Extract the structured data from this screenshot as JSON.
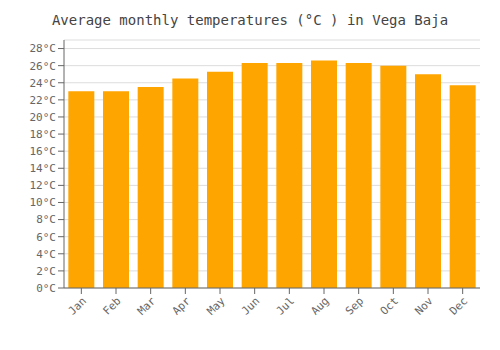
{
  "chart_data": {
    "type": "bar",
    "title": "Average monthly temperatures (°C ) in Vega Baja",
    "categories": [
      "Jan",
      "Feb",
      "Mar",
      "Apr",
      "May",
      "Jun",
      "Jul",
      "Aug",
      "Sep",
      "Oct",
      "Nov",
      "Dec"
    ],
    "values": [
      23.0,
      23.0,
      23.5,
      24.5,
      25.3,
      26.3,
      26.3,
      26.6,
      26.3,
      26.0,
      25.0,
      23.7
    ],
    "color": "#FFA500",
    "ylim": [
      0,
      29
    ],
    "yticks": [
      {
        "value": 0,
        "label": "0°C"
      },
      {
        "value": 2,
        "label": "2°C"
      },
      {
        "value": 4,
        "label": "4°C"
      },
      {
        "value": 6,
        "label": "6°C"
      },
      {
        "value": 8,
        "label": "8°C"
      },
      {
        "value": 10,
        "label": "10°C"
      },
      {
        "value": 12,
        "label": "12°C"
      },
      {
        "value": 14,
        "label": "14°C"
      },
      {
        "value": 16,
        "label": "16°C"
      },
      {
        "value": 18,
        "label": "18°C"
      },
      {
        "value": 20,
        "label": "20°C"
      },
      {
        "value": 22,
        "label": "22°C"
      },
      {
        "value": 24,
        "label": "24°C"
      },
      {
        "value": 26,
        "label": "26°C"
      },
      {
        "value": 28,
        "label": "28°C"
      }
    ],
    "grid": true
  }
}
